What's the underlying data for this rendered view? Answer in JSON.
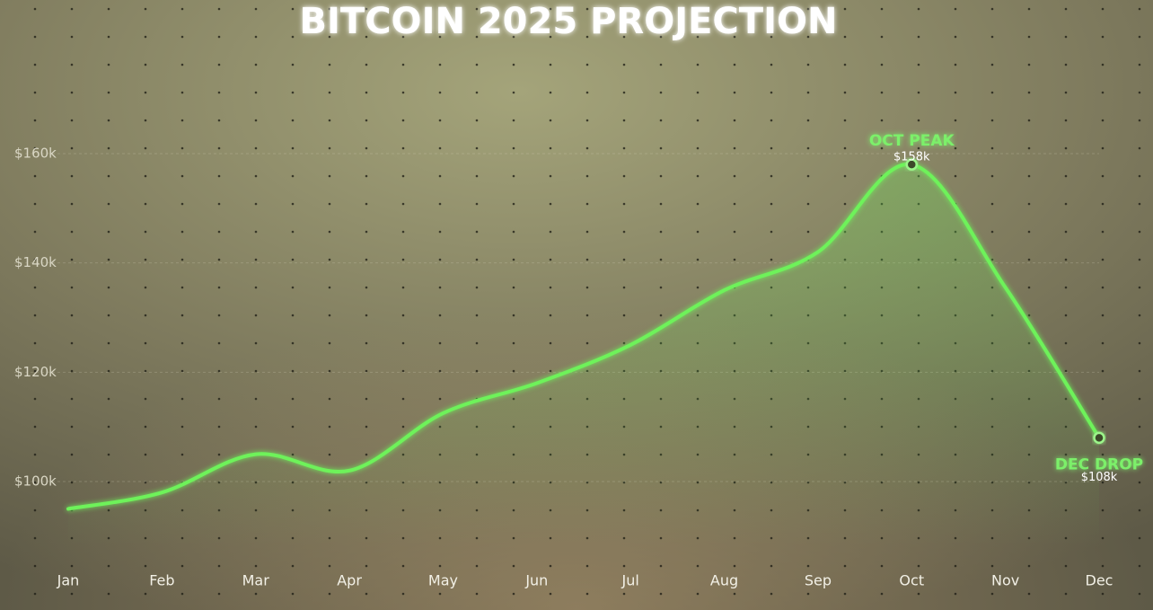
{
  "chart_data": {
    "type": "line",
    "title": "BITCOIN 2025 PROJECTION",
    "categories": [
      "Jan",
      "Feb",
      "Mar",
      "Apr",
      "May",
      "Jun",
      "Jul",
      "Aug",
      "Sep",
      "Oct",
      "Nov",
      "Dec"
    ],
    "series": [
      {
        "name": "Bitcoin",
        "color": "#6ef25a",
        "values": [
          95,
          98,
          105,
          102,
          112.5,
          118,
          125,
          135,
          142,
          158,
          135.5,
          108
        ]
      }
    ],
    "ylim": [
      88,
      172
    ],
    "yticks": [
      {
        "value": 100,
        "label": "$100k"
      },
      {
        "value": 120,
        "label": "$120k"
      },
      {
        "value": 140,
        "label": "$140k"
      },
      {
        "value": 160,
        "label": "$160k"
      }
    ],
    "grid": true,
    "annotations": [
      {
        "text": "OCT PEAK",
        "x": "Oct",
        "value": 158,
        "value_label": "$158k",
        "position": "above"
      },
      {
        "text": "DEC DROP",
        "x": "Dec",
        "value": 108,
        "value_label": "$108k",
        "position": "below"
      }
    ]
  }
}
